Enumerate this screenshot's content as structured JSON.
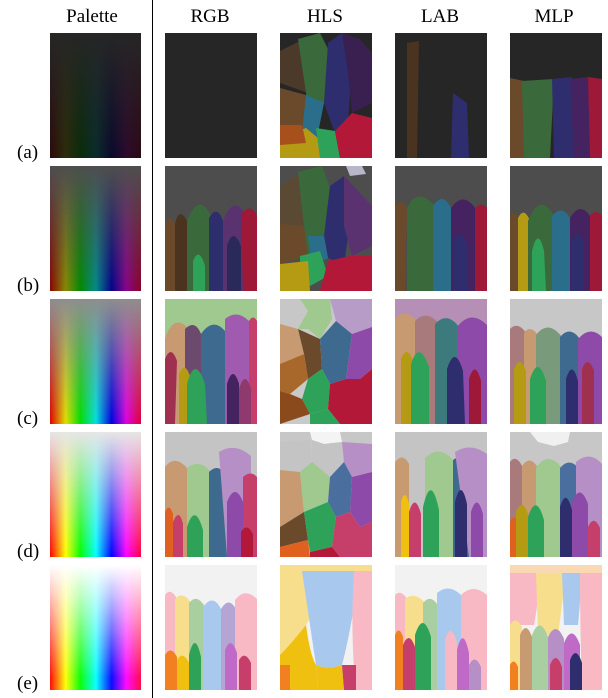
{
  "columns": [
    "Palette",
    "RGB",
    "HLS",
    "LAB",
    "MLP"
  ],
  "rows": [
    {
      "label": "(a)"
    },
    {
      "label": "(b)"
    },
    {
      "label": "(c)"
    },
    {
      "label": "(d)"
    },
    {
      "label": "(e)"
    }
  ]
}
